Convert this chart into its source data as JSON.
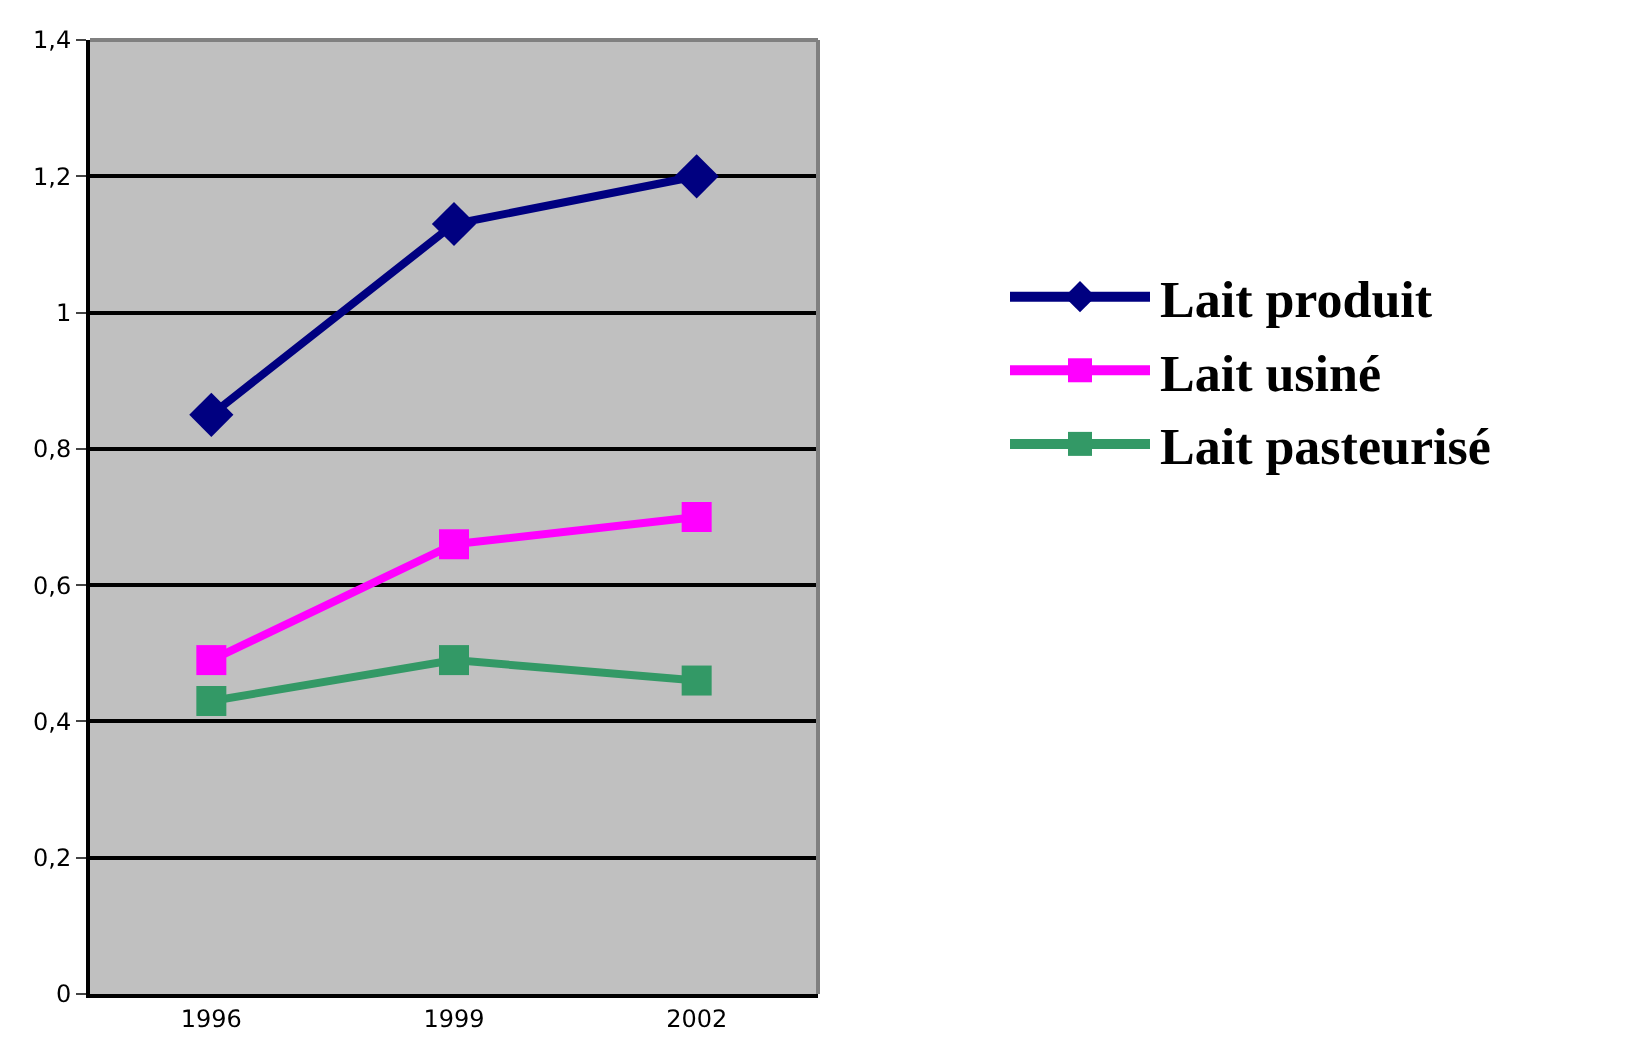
{
  "chart_data": {
    "type": "line",
    "categories": [
      "1996",
      "1999",
      "2002"
    ],
    "series": [
      {
        "name": "Lait produit",
        "color": "#000080",
        "marker": "diamond",
        "values": [
          0.85,
          1.13,
          1.2
        ]
      },
      {
        "name": "Lait usiné",
        "color": "#ff00ff",
        "marker": "square",
        "values": [
          0.49,
          0.66,
          0.7
        ]
      },
      {
        "name": "Lait pasteurisé",
        "color": "#339966",
        "marker": "square",
        "values": [
          0.43,
          0.49,
          0.46
        ]
      }
    ],
    "ylim": [
      0,
      1.4
    ],
    "yticks": [
      0,
      {
        "value": 0.2,
        "label": "0,2"
      },
      {
        "value": 0.4,
        "label": "0,4"
      },
      {
        "value": 0.6,
        "label": "0,6"
      },
      {
        "value": 0.8,
        "label": "0,8"
      },
      1,
      {
        "value": 1.2,
        "label": "1,2"
      },
      {
        "value": 1.4,
        "label": "1,4"
      }
    ],
    "grid": "y",
    "legend": "right",
    "line_style": "solid"
  }
}
